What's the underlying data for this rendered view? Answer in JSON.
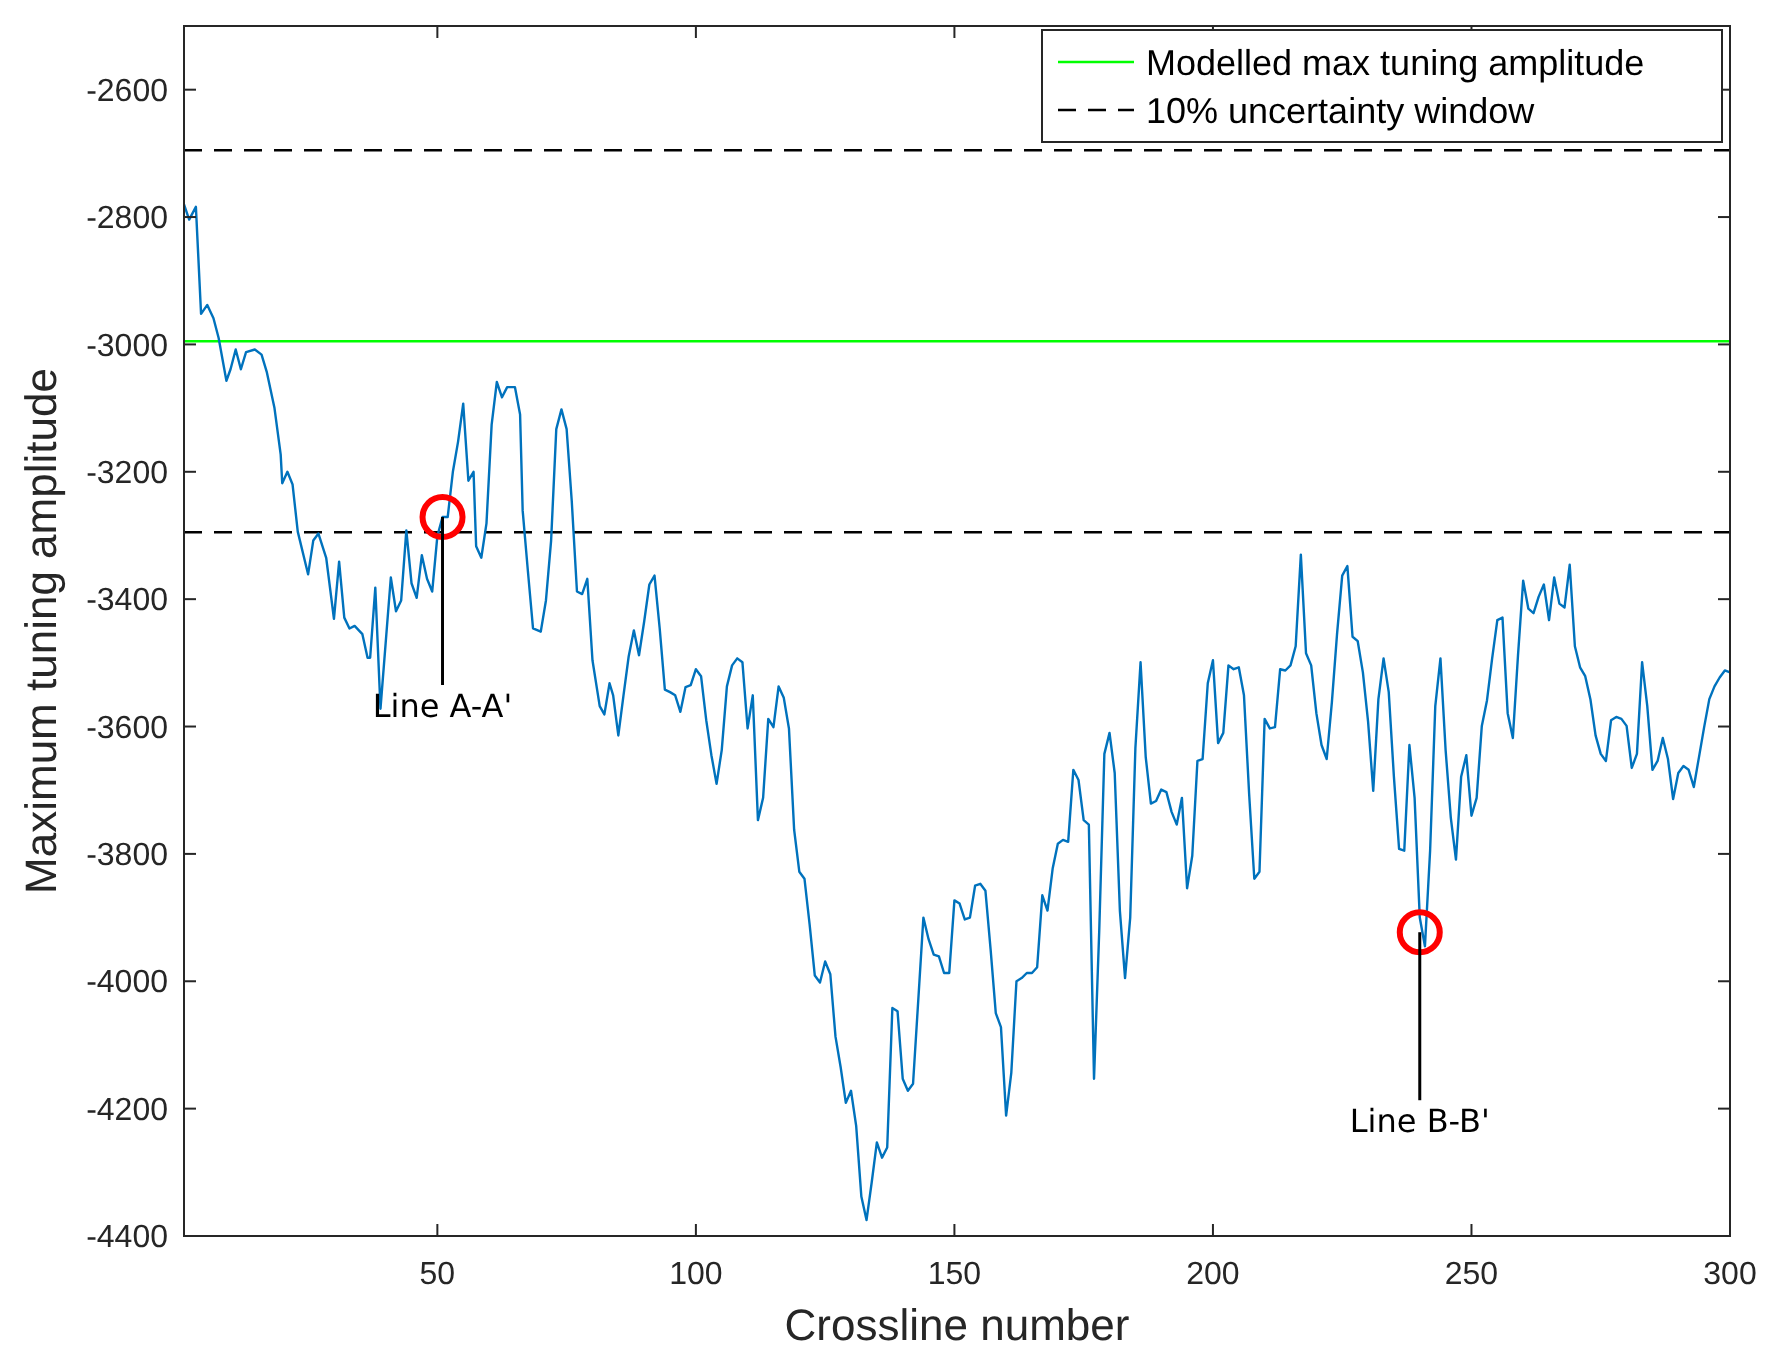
{
  "chart_data": {
    "type": "line",
    "xlabel": "Crossline number",
    "ylabel": "Maximum tuning amplitude",
    "xlim": [
      1,
      300
    ],
    "xticks": [
      50,
      100,
      150,
      200,
      250,
      300
    ],
    "ylim": [
      -4400,
      -2500
    ],
    "yticks": [
      -4400,
      -4200,
      -4000,
      -3800,
      -3600,
      -3400,
      -3200,
      -3000,
      -2800,
      -2600
    ],
    "grid": false,
    "legend": "top right",
    "marker": "none",
    "line_style": "solid",
    "series": [
      {
        "color": "#0072bd",
        "x": [
          1,
          2,
          3.3,
          4.3,
          5.5,
          6.7,
          7.7,
          9.2,
          10,
          11,
          12,
          13,
          14.7,
          16,
          17,
          18.5,
          19.7,
          20,
          21,
          22,
          23,
          25,
          26,
          27,
          28.5,
          30,
          31,
          32,
          33,
          34,
          35.5,
          36.5,
          37,
          38,
          39,
          40,
          41,
          42,
          43,
          44,
          45,
          46,
          47,
          48,
          49,
          50,
          51,
          52,
          53,
          54,
          55,
          56,
          57,
          57.5,
          58.5,
          59.5,
          60.5,
          61.5,
          62.5,
          63.5,
          65,
          66,
          66.5,
          67.5,
          68.5,
          70,
          71,
          72,
          73,
          74,
          75,
          76,
          77,
          78,
          79,
          80,
          81.4,
          82.3,
          83.3,
          84,
          85,
          86,
          87,
          88,
          89,
          90,
          91,
          92,
          93,
          94,
          95,
          96,
          97,
          98,
          99,
          100,
          101,
          102,
          103,
          104,
          105,
          106,
          107,
          108,
          109,
          110,
          111,
          112,
          113,
          114,
          115,
          116,
          117,
          118,
          119,
          120,
          121,
          122,
          123,
          124,
          125,
          126,
          127,
          128,
          129,
          130,
          131,
          132,
          133,
          134,
          135,
          136,
          137,
          138,
          139,
          140,
          141,
          142,
          143,
          144,
          145,
          146,
          147,
          148,
          149,
          150,
          151,
          152,
          153,
          154,
          155,
          156,
          157,
          158,
          159,
          160,
          161,
          162,
          163,
          164,
          165,
          166,
          167,
          168,
          169,
          170,
          171,
          172,
          173,
          174,
          175,
          176,
          177,
          178,
          179,
          180,
          181,
          182,
          183,
          184,
          185,
          186,
          187,
          188,
          189,
          190,
          191,
          192,
          193,
          194,
          195,
          196,
          197,
          198,
          199,
          200,
          201,
          202,
          203,
          204,
          205,
          206,
          207,
          208,
          209,
          210,
          211,
          212,
          213,
          214,
          215,
          216,
          217,
          218,
          219,
          220,
          221,
          222,
          223,
          224,
          225,
          226,
          227,
          228,
          229,
          230,
          231,
          232,
          233,
          234,
          235,
          236,
          237,
          238,
          239,
          240,
          241,
          242,
          243,
          244,
          245,
          246,
          247,
          248,
          249,
          250,
          251,
          252,
          253,
          254,
          255,
          256,
          257,
          258,
          259,
          260,
          261,
          262,
          263,
          264,
          265,
          266,
          267,
          268,
          269,
          270,
          271,
          272,
          273,
          274,
          275,
          276,
          277,
          278,
          279,
          280,
          281,
          282,
          283,
          284,
          285,
          286,
          287,
          288,
          289,
          290,
          291,
          292,
          293,
          294,
          295,
          296,
          297,
          298,
          299,
          300
        ],
        "values": [
          -2780,
          -2804,
          -2784,
          -2952,
          -2938,
          -2959,
          -2990,
          -3057,
          -3039,
          -3008,
          -3039,
          -3012,
          -3008,
          -3016,
          -3043,
          -3100,
          -3173,
          -3218,
          -3200,
          -3220,
          -3294,
          -3361,
          -3308,
          -3297,
          -3335,
          -3431,
          -3341,
          -3429,
          -3446,
          -3442,
          -3455,
          -3492,
          -3492,
          -3382,
          -3572,
          -3469,
          -3366,
          -3419,
          -3402,
          -3292,
          -3375,
          -3398,
          -3331,
          -3368,
          -3388,
          -3301,
          -3271,
          -3271,
          -3200,
          -3153,
          -3093,
          -3214,
          -3200,
          -3317,
          -3335,
          -3281,
          -3126,
          -3059,
          -3083,
          -3067,
          -3067,
          -3110,
          -3261,
          -3355,
          -3446,
          -3451,
          -3402,
          -3308,
          -3133,
          -3102,
          -3133,
          -3247,
          -3388,
          -3392,
          -3368,
          -3496,
          -3568,
          -3581,
          -3532,
          -3551,
          -3614,
          -3551,
          -3490,
          -3449,
          -3488,
          -3435,
          -3377,
          -3363,
          -3446,
          -3542,
          -3546,
          -3551,
          -3577,
          -3538,
          -3535,
          -3510,
          -3521,
          -3590,
          -3645,
          -3690,
          -3637,
          -3537,
          -3504,
          -3493,
          -3499,
          -3603,
          -3551,
          -3747,
          -3712,
          -3588,
          -3601,
          -3537,
          -3555,
          -3603,
          -3762,
          -3828,
          -3839,
          -3911,
          -3991,
          -4002,
          -3969,
          -3989,
          -4087,
          -4135,
          -4191,
          -4172,
          -4227,
          -4338,
          -4375,
          -4316,
          -4253,
          -4277,
          -4261,
          -4042,
          -4047,
          -4153,
          -4172,
          -4161,
          -4031,
          -3900,
          -3934,
          -3958,
          -3961,
          -3987,
          -3987,
          -3873,
          -3878,
          -3903,
          -3900,
          -3850,
          -3847,
          -3858,
          -3950,
          -4050,
          -4072,
          -4211,
          -4144,
          -4000,
          -3995,
          -3987,
          -3987,
          -3978,
          -3865,
          -3889,
          -3823,
          -3784,
          -3778,
          -3781,
          -3668,
          -3684,
          -3747,
          -3754,
          -4153,
          -3923,
          -3643,
          -3610,
          -3673,
          -3889,
          -3995,
          -3900,
          -3634,
          -3499,
          -3648,
          -3721,
          -3717,
          -3699,
          -3703,
          -3734,
          -3754,
          -3712,
          -3854,
          -3803,
          -3654,
          -3651,
          -3532,
          -3496,
          -3626,
          -3610,
          -3504,
          -3510,
          -3507,
          -3551,
          -3706,
          -3839,
          -3828,
          -3588,
          -3603,
          -3601,
          -3510,
          -3512,
          -3504,
          -3474,
          -3330,
          -3485,
          -3504,
          -3579,
          -3629,
          -3651,
          -3562,
          -3455,
          -3363,
          -3348,
          -3459,
          -3466,
          -3515,
          -3592,
          -3701,
          -3557,
          -3493,
          -3546,
          -3679,
          -3792,
          -3795,
          -3629,
          -3712,
          -3900,
          -3945,
          -3795,
          -3568,
          -3493,
          -3637,
          -3743,
          -3809,
          -3679,
          -3645,
          -3740,
          -3712,
          -3599,
          -3559,
          -3493,
          -3433,
          -3429,
          -3579,
          -3618,
          -3488,
          -3371,
          -3415,
          -3422,
          -3396,
          -3377,
          -3433,
          -3366,
          -3407,
          -3413,
          -3346,
          -3474,
          -3507,
          -3521,
          -3557,
          -3614,
          -3643,
          -3654,
          -3590,
          -3585,
          -3588,
          -3599,
          -3665,
          -3643,
          -3499,
          -3568,
          -3668,
          -3654,
          -3618,
          -3651,
          -3714,
          -3673,
          -3662,
          -3668,
          -3695,
          -3648,
          -3601,
          -3557,
          -3537,
          -3523,
          -3512,
          -3515
        ]
      }
    ],
    "ref_lines": [
      {
        "axis": "y",
        "value": -2995,
        "label": "Modelled max tuning amplitude",
        "color": "#00ff00",
        "line_style": "solid"
      },
      {
        "axis": "y",
        "value": -2695,
        "label": "10% uncertainty window",
        "color": "#000000",
        "line_style": "dashed"
      },
      {
        "axis": "y",
        "value": -3295,
        "color": "#000000",
        "line_style": "dashed"
      }
    ],
    "annotations": [
      {
        "text": "Line A-A'",
        "x": 51,
        "y": -3271
      },
      {
        "text": "Line B-B'",
        "x": 240,
        "y": -3923
      }
    ]
  }
}
